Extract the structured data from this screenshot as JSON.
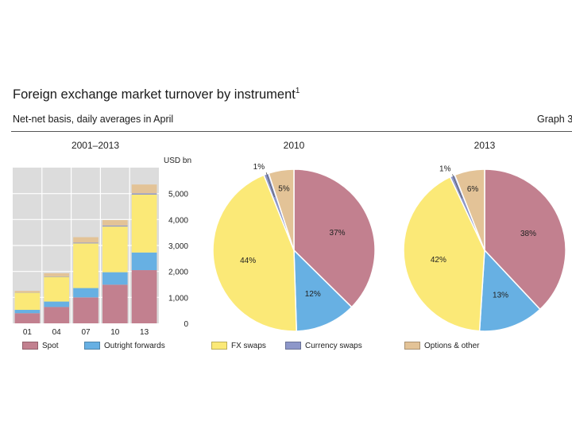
{
  "header": {
    "title": "Foreign exchange market turnover by instrument",
    "title_footnote": "1",
    "subtitle": "Net-net basis, daily averages in April",
    "graph_label": "Graph 3"
  },
  "colors": {
    "spot": "#c2808f",
    "outright_forwards": "#67b0e3",
    "fx_swaps": "#fbe977",
    "currency_swaps": "#8d97c9",
    "options_other": "#e3c397",
    "plot_bg": "#dcdcdc",
    "grid": "#ffffff"
  },
  "legend": [
    {
      "key": "spot",
      "label": "Spot",
      "color": "#c2808f"
    },
    {
      "key": "outright_forwards",
      "label": "Outright forwards",
      "color": "#67b0e3"
    },
    {
      "key": "fx_swaps",
      "label": "FX swaps",
      "color": "#fbe977"
    },
    {
      "key": "currency_swaps",
      "label": "Currency swaps",
      "color": "#8d97c9"
    },
    {
      "key": "options_other",
      "label": "Options & other",
      "color": "#e3c397"
    }
  ],
  "chart_data": [
    {
      "type": "bar",
      "stacked": true,
      "title": "2001–2013",
      "ylabel": "USD bn",
      "ylim": [
        0,
        6000
      ],
      "yticks": [
        0,
        1000,
        2000,
        3000,
        4000,
        5000
      ],
      "ytick_labels": [
        "0",
        "1,000",
        "2,000",
        "3,000",
        "4,000",
        "5,000"
      ],
      "categories": [
        "01",
        "04",
        "07",
        "10",
        "13"
      ],
      "series": [
        {
          "name": "Spot",
          "values": [
            390,
            630,
            1000,
            1490,
            2050
          ]
        },
        {
          "name": "Outright forwards",
          "values": [
            130,
            210,
            360,
            480,
            680
          ]
        },
        {
          "name": "FX swaps",
          "values": [
            660,
            950,
            1720,
            1760,
            2230
          ]
        },
        {
          "name": "Currency swaps",
          "values": [
            10,
            20,
            30,
            40,
            50
          ]
        },
        {
          "name": "Options & other",
          "values": [
            60,
            120,
            210,
            210,
            340
          ]
        }
      ]
    },
    {
      "type": "pie",
      "title": "2010",
      "categories": [
        "Spot",
        "Outright forwards",
        "FX swaps",
        "Currency swaps",
        "Options & other"
      ],
      "values": [
        37,
        12,
        44,
        1,
        5
      ],
      "labels": [
        "37%",
        "12%",
        "44%",
        "1%",
        "5%"
      ]
    },
    {
      "type": "pie",
      "title": "2013",
      "categories": [
        "Spot",
        "Outright forwards",
        "FX swaps",
        "Currency swaps",
        "Options & other"
      ],
      "values": [
        38,
        13,
        42,
        1,
        6
      ],
      "labels": [
        "38%",
        "13%",
        "42%",
        "1%",
        "6%"
      ]
    }
  ]
}
